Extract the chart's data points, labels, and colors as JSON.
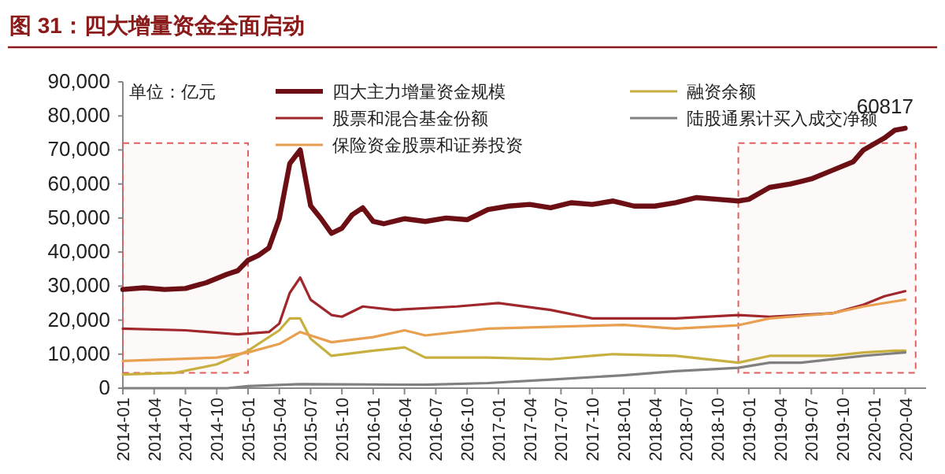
{
  "chart_data": {
    "type": "line",
    "title": "图 31：四大增量资金全面启动",
    "ylabel": "单位：亿元",
    "annotations": [
      "60817"
    ],
    "xlim": [
      "2014-01",
      "2020-06"
    ],
    "ylim": [
      0,
      90000
    ],
    "xticks": [
      "2014-01",
      "2014-04",
      "2014-07",
      "2014-10",
      "2015-01",
      "2015-04",
      "2015-07",
      "2015-10",
      "2016-01",
      "2016-04",
      "2016-07",
      "2016-10",
      "2017-01",
      "2017-04",
      "2017-07",
      "2017-10",
      "2018-01",
      "2018-04",
      "2018-07",
      "2018-10",
      "2019-01",
      "2019-04",
      "2019-07",
      "2019-10",
      "2020-01",
      "2020-04"
    ],
    "yticks": [
      {
        "value": 0,
        "label": "0"
      },
      {
        "value": 10000,
        "label": "10,000"
      },
      {
        "value": 20000,
        "label": "20,000"
      },
      {
        "value": 30000,
        "label": "30,000"
      },
      {
        "value": 40000,
        "label": "40,000"
      },
      {
        "value": 50000,
        "label": "50,000"
      },
      {
        "value": 60000,
        "label": "60,000"
      },
      {
        "value": 70000,
        "label": "70,000"
      },
      {
        "value": 80000,
        "label": "80,000"
      },
      {
        "value": 90000,
        "label": "90,000"
      }
    ],
    "grid": false,
    "legend": "top",
    "marker": "none",
    "line_style": "solid",
    "bands": [
      {
        "axis": "x",
        "from": "2014-01",
        "to": "2015-01",
        "color": "#e06060"
      },
      {
        "axis": "x",
        "from": "2018-12",
        "to": "2020-05",
        "color": "#e06060"
      }
    ],
    "series": [
      {
        "name": "四大主力增量资金规模",
        "color": "#6b0f14",
        "x": [
          "2014-01",
          "2014-03",
          "2014-05",
          "2014-07",
          "2014-09",
          "2014-11",
          "2014-12",
          "2015-01",
          "2015-02",
          "2015-03",
          "2015-04",
          "2015-05",
          "2015-06",
          "2015-07",
          "2015-08",
          "2015-09",
          "2015-10",
          "2015-11",
          "2015-12",
          "2016-01",
          "2016-02",
          "2016-04",
          "2016-06",
          "2016-08",
          "2016-10",
          "2016-12",
          "2017-02",
          "2017-04",
          "2017-06",
          "2017-08",
          "2017-10",
          "2017-12",
          "2018-02",
          "2018-04",
          "2018-06",
          "2018-08",
          "2018-10",
          "2018-12",
          "2019-01",
          "2019-03",
          "2019-05",
          "2019-07",
          "2019-09",
          "2019-11",
          "2019-12",
          "2020-02",
          "2020-03",
          "2020-04"
        ],
        "values": [
          29000,
          29500,
          29000,
          29300,
          31000,
          33500,
          34500,
          37600,
          39000,
          41200,
          49800,
          66000,
          70000,
          53600,
          49800,
          45500,
          47000,
          51000,
          53000,
          49000,
          48300,
          49800,
          49000,
          50000,
          49500,
          52500,
          53500,
          54000,
          53000,
          54500,
          54000,
          55000,
          53500,
          53500,
          54500,
          56000,
          55500,
          55000,
          55500,
          59000,
          60000,
          61500,
          64000,
          66500,
          70000,
          73500,
          75800,
          76400
        ]
      },
      {
        "name": "融资余额",
        "color": "#c8b040",
        "x": [
          "2014-01",
          "2014-06",
          "2014-10",
          "2015-01",
          "2015-04",
          "2015-05",
          "2015-06",
          "2015-07",
          "2015-09",
          "2016-01",
          "2016-04",
          "2016-06",
          "2016-12",
          "2017-06",
          "2017-12",
          "2018-06",
          "2018-12",
          "2019-03",
          "2019-09",
          "2019-12",
          "2020-03",
          "2020-04"
        ],
        "values": [
          4000,
          4500,
          7000,
          11000,
          17000,
          20500,
          20500,
          14500,
          9500,
          11000,
          12000,
          9000,
          9000,
          8500,
          10000,
          9500,
          7500,
          9500,
          9500,
          10500,
          11000,
          11000
        ]
      },
      {
        "name": "股票和混合基金份额",
        "color": "#a0282d",
        "x": [
          "2014-01",
          "2014-07",
          "2014-12",
          "2015-03",
          "2015-04",
          "2015-05",
          "2015-06",
          "2015-07",
          "2015-09",
          "2015-10",
          "2015-12",
          "2016-03",
          "2016-09",
          "2017-01",
          "2017-06",
          "2017-10",
          "2018-06",
          "2018-12",
          "2019-03",
          "2019-09",
          "2019-12",
          "2020-02",
          "2020-04"
        ],
        "values": [
          17500,
          17000,
          15800,
          16500,
          19000,
          28000,
          32500,
          26000,
          21500,
          21000,
          24000,
          23000,
          24000,
          25000,
          23000,
          20500,
          20500,
          21500,
          21000,
          22000,
          24500,
          27000,
          28500
        ]
      },
      {
        "name": "陆股通累计买入成交净额",
        "color": "#808080",
        "x": [
          "2014-01",
          "2014-11",
          "2015-01",
          "2015-06",
          "2016-06",
          "2016-12",
          "2017-06",
          "2018-01",
          "2018-06",
          "2018-12",
          "2019-03",
          "2019-06",
          "2019-12",
          "2020-02",
          "2020-04"
        ],
        "values": [
          0,
          0,
          600,
          1200,
          1000,
          1500,
          2500,
          3800,
          5000,
          6000,
          7500,
          7500,
          9500,
          10000,
          10500
        ]
      },
      {
        "name": "保险资金股票和证券投资",
        "color": "#e8a050",
        "x": [
          "2014-01",
          "2014-10",
          "2015-01",
          "2015-04",
          "2015-06",
          "2015-09",
          "2016-01",
          "2016-04",
          "2016-06",
          "2016-12",
          "2017-06",
          "2018-01",
          "2018-06",
          "2018-12",
          "2019-03",
          "2019-09",
          "2019-12",
          "2020-03",
          "2020-04"
        ],
        "values": [
          8000,
          9000,
          10500,
          13000,
          16500,
          13500,
          15000,
          17000,
          15500,
          17500,
          18000,
          18600,
          17500,
          18500,
          20500,
          22000,
          24000,
          25500,
          26000
        ]
      }
    ]
  }
}
